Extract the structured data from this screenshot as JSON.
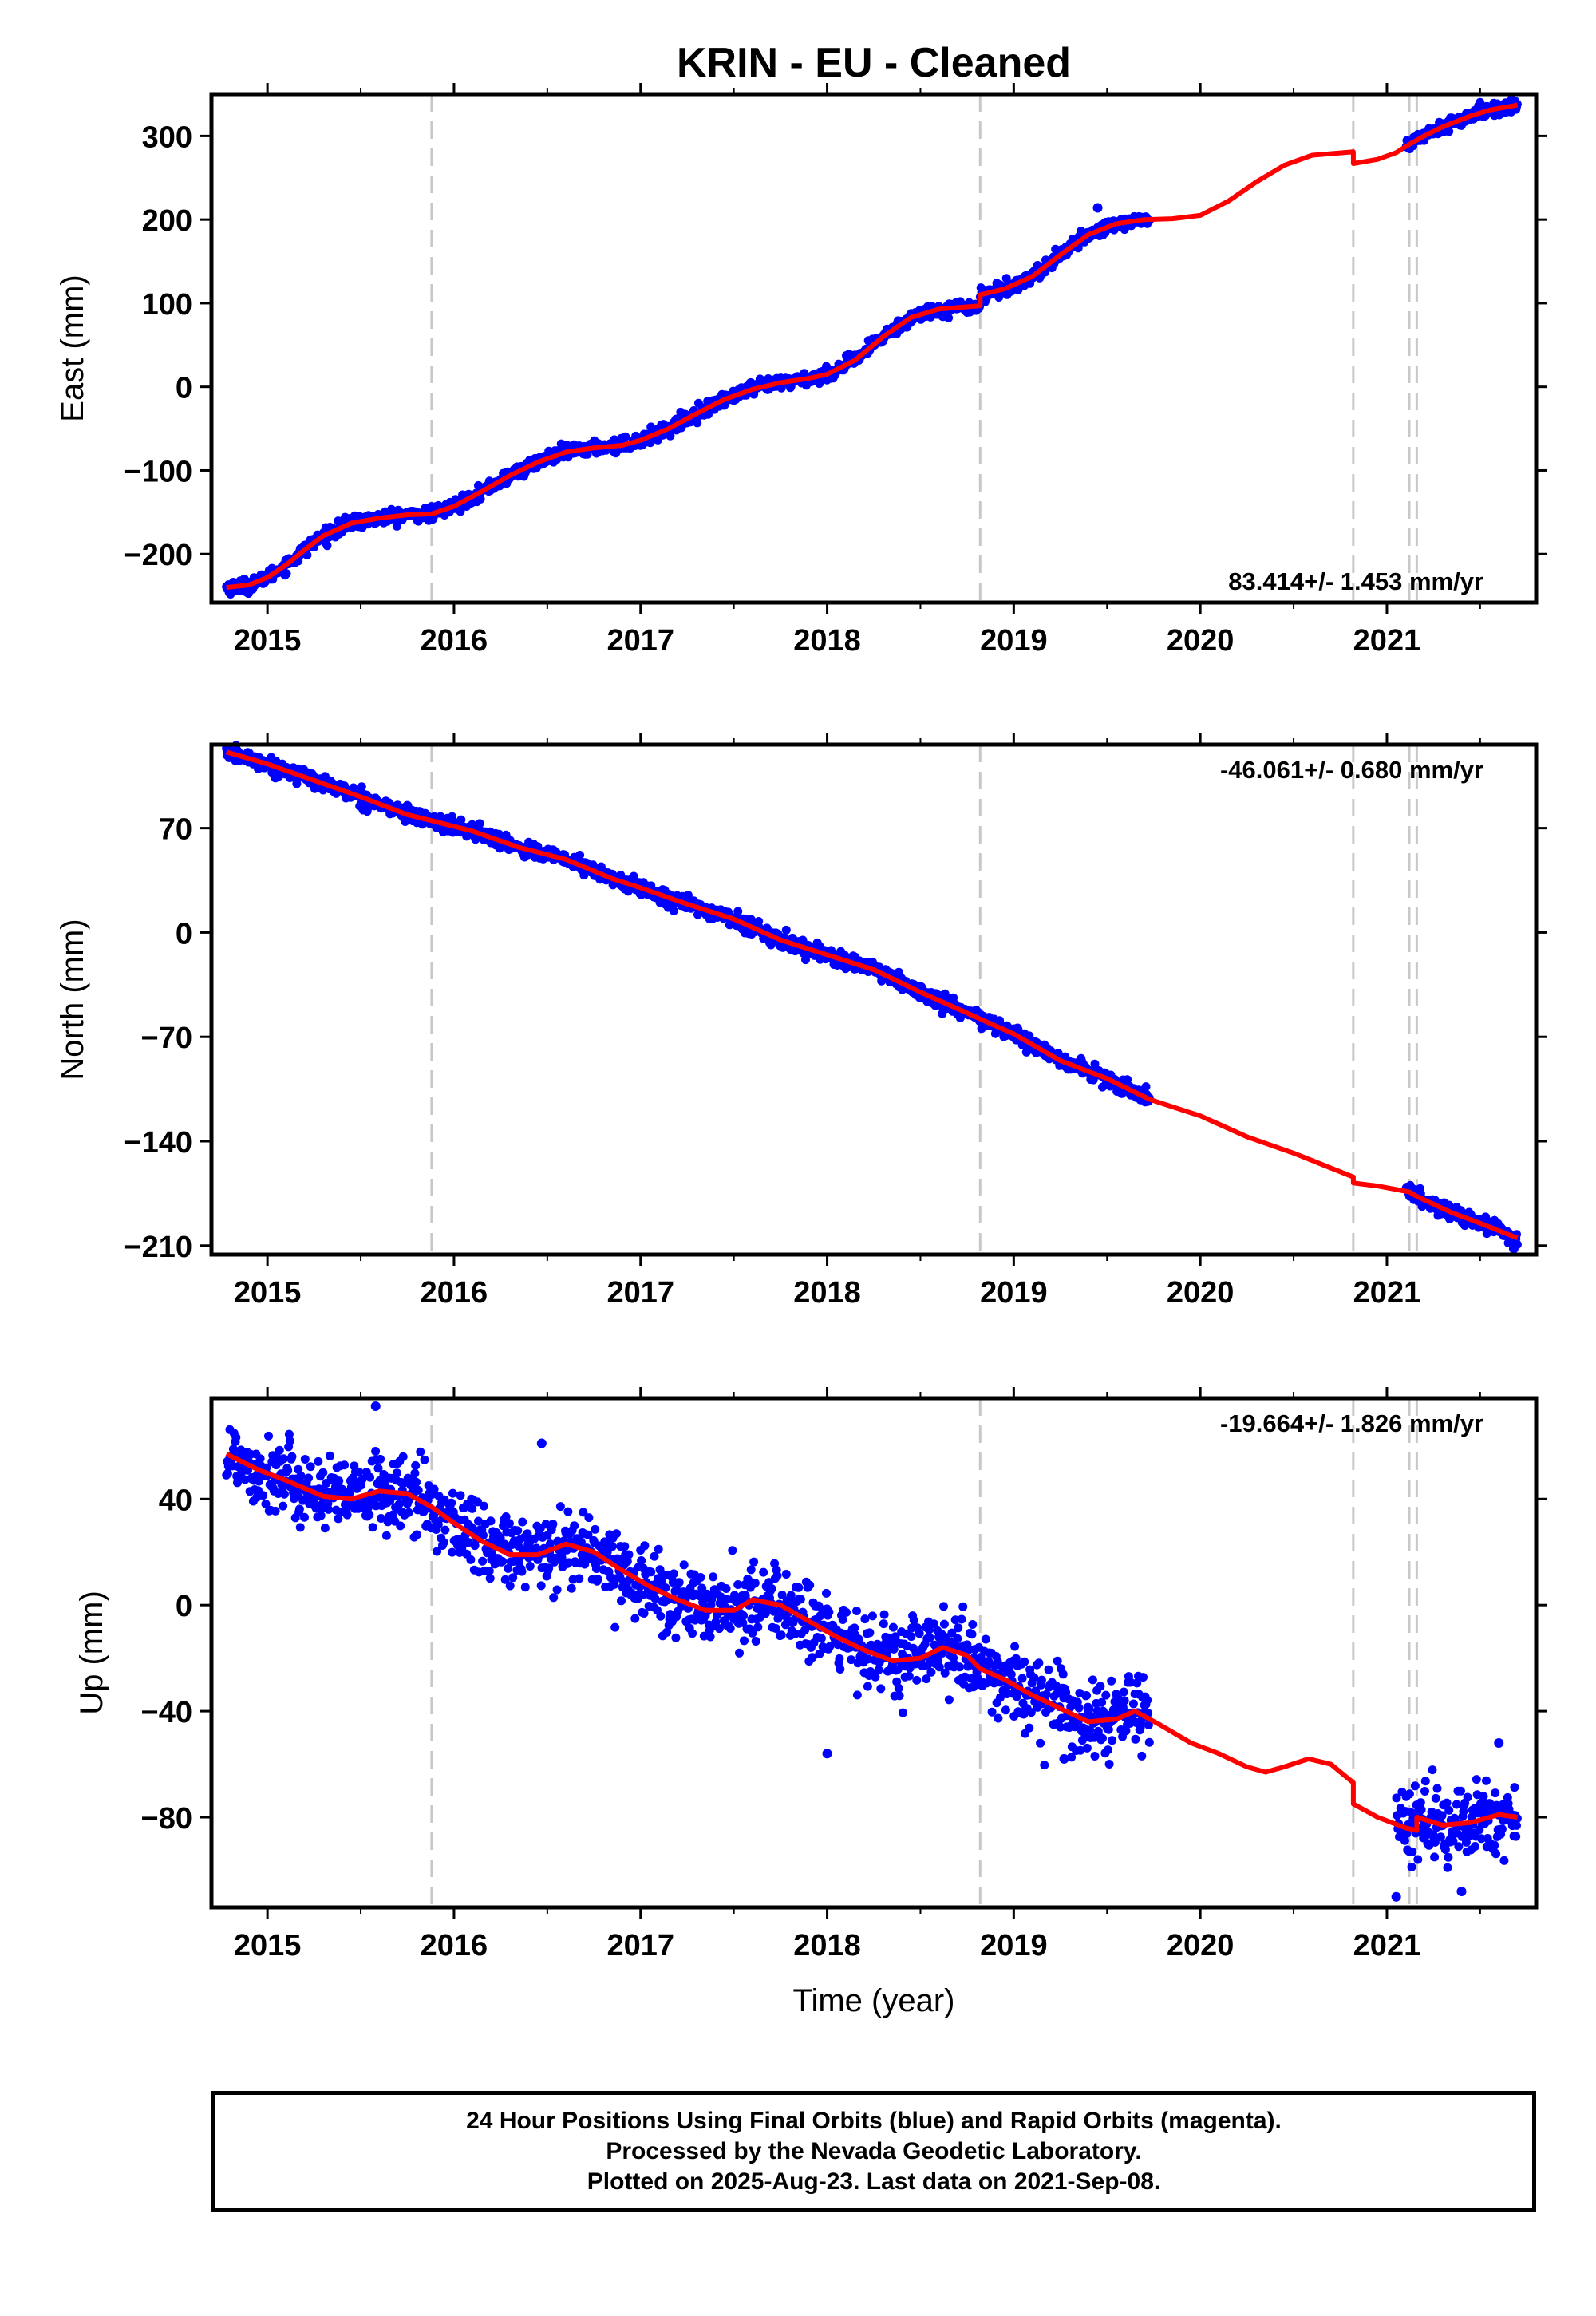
{
  "title": "KRIN  - EU - Cleaned",
  "xlabel": "Time (year)",
  "x_ticks": [
    "2015",
    "2016",
    "2017",
    "2018",
    "2019",
    "2020",
    "2021"
  ],
  "notes": [
    "24 Hour Positions Using Final Orbits (blue) and Rapid Orbits (magenta).",
    "Processed by the Nevada Geodetic Laboratory.",
    "Plotted on 2025-Aug-23. Last data on 2021-Sep-08."
  ],
  "chart_data": [
    {
      "type": "scatter",
      "ylabel": "East (mm)",
      "rate_label": "83.414+/- 1.453 mm/yr",
      "rate_position": "bottom-right",
      "xlim": [
        2014.7,
        2021.8
      ],
      "ylim": [
        -258,
        350
      ],
      "y_ticks": [
        -200,
        -100,
        0,
        100,
        200,
        300
      ],
      "y_tick_labels": [
        "−200",
        "−100",
        "0",
        "100",
        "200",
        "300"
      ],
      "gaps": [
        [
          2019.73,
          2021.1
        ]
      ],
      "noise_mm": 4,
      "outlier_points": [
        [
          2019.45,
          214
        ],
        [
          2021.63,
          338
        ]
      ],
      "data_series_color": "#0000ff",
      "model_series_color": "#ff0000",
      "model_curve": [
        [
          2014.78,
          -240
        ],
        [
          2014.9,
          -237
        ],
        [
          2015.0,
          -228
        ],
        [
          2015.1,
          -213
        ],
        [
          2015.2,
          -195
        ],
        [
          2015.3,
          -178
        ],
        [
          2015.45,
          -163
        ],
        [
          2015.6,
          -157
        ],
        [
          2015.75,
          -153
        ],
        [
          2015.88,
          -152
        ],
        [
          2016.0,
          -143
        ],
        [
          2016.15,
          -125
        ],
        [
          2016.3,
          -106
        ],
        [
          2016.45,
          -90
        ],
        [
          2016.6,
          -78
        ],
        [
          2016.75,
          -73
        ],
        [
          2016.9,
          -70
        ],
        [
          2017.0,
          -64
        ],
        [
          2017.15,
          -50
        ],
        [
          2017.3,
          -32
        ],
        [
          2017.45,
          -15
        ],
        [
          2017.6,
          -3
        ],
        [
          2017.75,
          5
        ],
        [
          2017.9,
          10
        ],
        [
          2018.0,
          15
        ],
        [
          2018.15,
          32
        ],
        [
          2018.3,
          60
        ],
        [
          2018.45,
          83
        ],
        [
          2018.6,
          93
        ],
        [
          2018.82,
          97
        ],
        [
          2018.82,
          110
        ],
        [
          2018.95,
          117
        ],
        [
          2019.1,
          132
        ],
        [
          2019.25,
          158
        ],
        [
          2019.4,
          182
        ],
        [
          2019.55,
          195
        ],
        [
          2019.7,
          200
        ],
        [
          2019.85,
          201
        ],
        [
          2020.0,
          205
        ],
        [
          2020.15,
          222
        ],
        [
          2020.3,
          245
        ],
        [
          2020.45,
          265
        ],
        [
          2020.6,
          277
        ],
        [
          2020.82,
          281
        ],
        [
          2020.82,
          267
        ],
        [
          2020.95,
          272
        ],
        [
          2021.05,
          280
        ],
        [
          2021.12,
          290
        ],
        [
          2021.2,
          300
        ],
        [
          2021.3,
          311
        ],
        [
          2021.45,
          324
        ],
        [
          2021.55,
          331
        ],
        [
          2021.7,
          337
        ]
      ],
      "events": [
        2015.88,
        2018.82,
        2020.82,
        2021.12,
        2021.16
      ]
    },
    {
      "type": "scatter",
      "ylabel": "North (mm)",
      "rate_label": "-46.061+/- 0.680 mm/yr",
      "rate_position": "top-right",
      "xlim": [
        2014.7,
        2021.8
      ],
      "ylim": [
        -216,
        126
      ],
      "y_ticks": [
        -210,
        -140,
        -70,
        0,
        70
      ],
      "y_tick_labels": [
        "−210",
        "−140",
        "−70",
        "0",
        "70"
      ],
      "gaps": [
        [
          2019.73,
          2021.1
        ]
      ],
      "noise_mm": 2.5,
      "outlier_points": [
        [
          2015.75,
          85
        ],
        [
          2016.2,
          62
        ],
        [
          2018.22,
          -26
        ],
        [
          2021.68,
          -212
        ]
      ],
      "data_series_color": "#0000ff",
      "model_series_color": "#ff0000",
      "model_curve": [
        [
          2014.78,
          121
        ],
        [
          2015.0,
          113
        ],
        [
          2015.25,
          102
        ],
        [
          2015.5,
          91
        ],
        [
          2015.75,
          79
        ],
        [
          2015.88,
          75
        ],
        [
          2016.1,
          68
        ],
        [
          2016.35,
          57
        ],
        [
          2016.6,
          49
        ],
        [
          2016.85,
          36
        ],
        [
          2017.0,
          30
        ],
        [
          2017.25,
          19
        ],
        [
          2017.5,
          9
        ],
        [
          2017.75,
          -5
        ],
        [
          2018.0,
          -15
        ],
        [
          2018.25,
          -25
        ],
        [
          2018.5,
          -40
        ],
        [
          2018.75,
          -54
        ],
        [
          2018.82,
          -58
        ],
        [
          2019.0,
          -68
        ],
        [
          2019.25,
          -86
        ],
        [
          2019.5,
          -98
        ],
        [
          2019.73,
          -112
        ],
        [
          2020.0,
          -123
        ],
        [
          2020.25,
          -137
        ],
        [
          2020.5,
          -148
        ],
        [
          2020.82,
          -164
        ],
        [
          2020.82,
          -168
        ],
        [
          2020.95,
          -170
        ],
        [
          2021.12,
          -174
        ],
        [
          2021.16,
          -177
        ],
        [
          2021.35,
          -188
        ],
        [
          2021.5,
          -195
        ],
        [
          2021.7,
          -205
        ]
      ],
      "events": [
        2015.88,
        2018.82,
        2020.82,
        2021.12,
        2021.16
      ]
    },
    {
      "type": "scatter",
      "ylabel": "Up (mm)",
      "rate_label": "-19.664+/- 1.826 mm/yr",
      "rate_position": "top-right",
      "xlim": [
        2014.7,
        2021.8
      ],
      "ylim": [
        -114,
        78
      ],
      "y_ticks": [
        -80,
        -40,
        0,
        40
      ],
      "y_tick_labels": [
        "−80",
        "−40",
        "0",
        "40"
      ],
      "gaps": [
        [
          2019.73,
          2021.05
        ]
      ],
      "noise_mm": 7,
      "outlier_points": [
        [
          2015.58,
          75
        ],
        [
          2016.47,
          61
        ],
        [
          2018.0,
          -56
        ],
        [
          2019.27,
          -58
        ],
        [
          2021.05,
          -110
        ],
        [
          2021.4,
          -108
        ],
        [
          2021.6,
          -52
        ]
      ],
      "data_series_color": "#0000ff",
      "model_series_color": "#ff0000",
      "model_curve": [
        [
          2014.78,
          57
        ],
        [
          2014.95,
          51
        ],
        [
          2015.1,
          47
        ],
        [
          2015.3,
          41
        ],
        [
          2015.45,
          40
        ],
        [
          2015.6,
          43
        ],
        [
          2015.75,
          42
        ],
        [
          2015.88,
          37
        ],
        [
          2016.0,
          31
        ],
        [
          2016.15,
          24
        ],
        [
          2016.3,
          19
        ],
        [
          2016.45,
          19
        ],
        [
          2016.6,
          23
        ],
        [
          2016.75,
          20
        ],
        [
          2016.88,
          14
        ],
        [
          2017.05,
          7
        ],
        [
          2017.2,
          2
        ],
        [
          2017.35,
          -2
        ],
        [
          2017.5,
          -2
        ],
        [
          2017.6,
          2
        ],
        [
          2017.75,
          0
        ],
        [
          2017.9,
          -6
        ],
        [
          2018.05,
          -12
        ],
        [
          2018.2,
          -17
        ],
        [
          2018.35,
          -21
        ],
        [
          2018.5,
          -20
        ],
        [
          2018.62,
          -16
        ],
        [
          2018.75,
          -19
        ],
        [
          2018.82,
          -24
        ],
        [
          2018.95,
          -28
        ],
        [
          2019.1,
          -34
        ],
        [
          2019.25,
          -39
        ],
        [
          2019.4,
          -44
        ],
        [
          2019.55,
          -43
        ],
        [
          2019.65,
          -40
        ],
        [
          2019.78,
          -45
        ],
        [
          2019.95,
          -52
        ],
        [
          2020.1,
          -56
        ],
        [
          2020.25,
          -61
        ],
        [
          2020.35,
          -63
        ],
        [
          2020.45,
          -61
        ],
        [
          2020.58,
          -58
        ],
        [
          2020.7,
          -60
        ],
        [
          2020.82,
          -67
        ],
        [
          2020.82,
          -75
        ],
        [
          2020.95,
          -80
        ],
        [
          2021.1,
          -84
        ],
        [
          2021.16,
          -85
        ],
        [
          2021.16,
          -80
        ],
        [
          2021.3,
          -83
        ],
        [
          2021.45,
          -82
        ],
        [
          2021.6,
          -79
        ],
        [
          2021.7,
          -80
        ]
      ],
      "events": [
        2015.88,
        2018.82,
        2020.82,
        2021.12,
        2021.16
      ]
    }
  ]
}
